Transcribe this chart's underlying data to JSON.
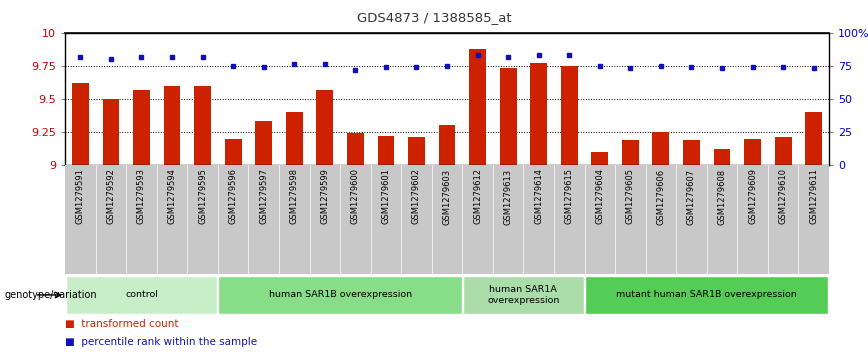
{
  "title": "GDS4873 / 1388585_at",
  "samples": [
    "GSM1279591",
    "GSM1279592",
    "GSM1279593",
    "GSM1279594",
    "GSM1279595",
    "GSM1279596",
    "GSM1279597",
    "GSM1279598",
    "GSM1279599",
    "GSM1279600",
    "GSM1279601",
    "GSM1279602",
    "GSM1279603",
    "GSM1279612",
    "GSM1279613",
    "GSM1279614",
    "GSM1279615",
    "GSM1279604",
    "GSM1279605",
    "GSM1279606",
    "GSM1279607",
    "GSM1279608",
    "GSM1279609",
    "GSM1279610",
    "GSM1279611"
  ],
  "bar_values": [
    9.62,
    9.5,
    9.57,
    9.6,
    9.6,
    9.2,
    9.33,
    9.4,
    9.57,
    9.24,
    9.22,
    9.21,
    9.3,
    9.88,
    9.73,
    9.77,
    9.75,
    9.1,
    9.19,
    9.25,
    9.19,
    9.12,
    9.2,
    9.21,
    9.4
  ],
  "dot_values": [
    82,
    80,
    82,
    82,
    82,
    75,
    74,
    76,
    76,
    72,
    74,
    74,
    75,
    83,
    82,
    83,
    83,
    75,
    73,
    75,
    74,
    73,
    74,
    74,
    73
  ],
  "ylim_left": [
    9.0,
    10.0
  ],
  "ylim_right": [
    0,
    100
  ],
  "yticks_left": [
    9.0,
    9.25,
    9.5,
    9.75,
    10.0
  ],
  "ytick_labels_left": [
    "9",
    "9.25",
    "9.5",
    "9.75",
    "10"
  ],
  "yticks_right": [
    0,
    25,
    50,
    75,
    100
  ],
  "ytick_labels_right": [
    "0",
    "25",
    "50",
    "75",
    "100%"
  ],
  "hlines": [
    9.25,
    9.5,
    9.75
  ],
  "bar_color": "#CC2200",
  "dot_color": "#1111BB",
  "groups": [
    {
      "label": "control",
      "start": 0,
      "end": 4,
      "color": "#C8EEC8"
    },
    {
      "label": "human SAR1B overexpression",
      "start": 5,
      "end": 12,
      "color": "#88DD88"
    },
    {
      "label": "human SAR1A\noverexpression",
      "start": 13,
      "end": 16,
      "color": "#AADDAA"
    },
    {
      "label": "mutant human SAR1B overexpression",
      "start": 17,
      "end": 24,
      "color": "#55CC55"
    }
  ],
  "genotype_label": "genotype/variation",
  "bar_color_legend": "#CC2200",
  "dot_color_legend": "#1111BB",
  "ylabel_left_color": "#CC0000",
  "ylabel_right_color": "#0000CC",
  "bar_width": 0.55,
  "tick_bg_color": "#C8C8C8",
  "tick_sep_color": "#FFFFFF"
}
